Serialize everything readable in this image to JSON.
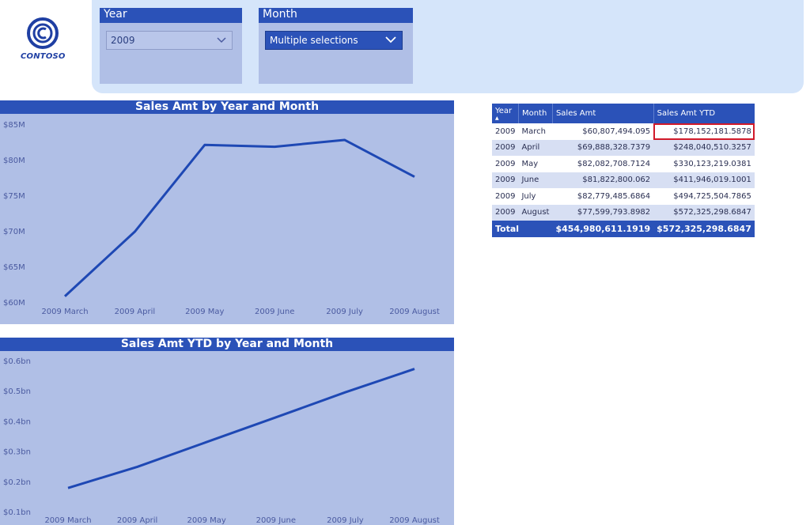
{
  "brand": {
    "name": "CONTOSO",
    "logo_icon": "contoso-logo-icon"
  },
  "colors": {
    "accent": "#2b52b8",
    "panel": "#b0bfe6",
    "filter_bg": "#d5e5fa",
    "line": "#1e48b4",
    "highlight": "#d11a2a"
  },
  "filters": {
    "year": {
      "title": "Year",
      "value": "2009"
    },
    "month": {
      "title": "Month",
      "value": "Multiple selections"
    }
  },
  "chart_data": [
    {
      "type": "line",
      "title": "Sales Amt by Year and Month",
      "categories": [
        "2009 March",
        "2009 April",
        "2009 May",
        "2009 June",
        "2009 July",
        "2009 August"
      ],
      "values": [
        60807494.095,
        69888328.7379,
        82082708.7124,
        81822800.062,
        82779485.6864,
        77599793.8982
      ],
      "yticks": [
        "$60M",
        "$65M",
        "$70M",
        "$75M",
        "$80M",
        "$85M"
      ],
      "ylim": [
        60000000,
        85000000
      ],
      "grid": false
    },
    {
      "type": "line",
      "title": "Sales Amt YTD by Year and Month",
      "categories": [
        "2009 March",
        "2009 April",
        "2009 May",
        "2009 June",
        "2009 July",
        "2009 August"
      ],
      "values": [
        178152181.5878,
        248040510.3257,
        330123219.0381,
        411946019.1001,
        494725504.7865,
        572325298.6847
      ],
      "yticks": [
        "$0.1bn",
        "$0.2bn",
        "$0.3bn",
        "$0.4bn",
        "$0.5bn",
        "$0.6bn"
      ],
      "ylim": [
        100000000,
        600000000
      ],
      "grid": false
    }
  ],
  "table": {
    "headers": [
      "Year",
      "Month",
      "Sales Amt",
      "Sales Amt YTD"
    ],
    "rows": [
      [
        "2009",
        "March",
        "$60,807,494.095",
        "$178,152,181.5878"
      ],
      [
        "2009",
        "April",
        "$69,888,328.7379",
        "$248,040,510.3257"
      ],
      [
        "2009",
        "May",
        "$82,082,708.7124",
        "$330,123,219.0381"
      ],
      [
        "2009",
        "June",
        "$81,822,800.062",
        "$411,946,019.1001"
      ],
      [
        "2009",
        "July",
        "$82,779,485.6864",
        "$494,725,504.7865"
      ],
      [
        "2009",
        "August",
        "$77,599,793.8982",
        "$572,325,298.6847"
      ]
    ],
    "total": [
      "Total",
      "$454,980,611.1919",
      "$572,325,298.6847"
    ],
    "highlighted_cell": "$178,152,181.5878"
  }
}
